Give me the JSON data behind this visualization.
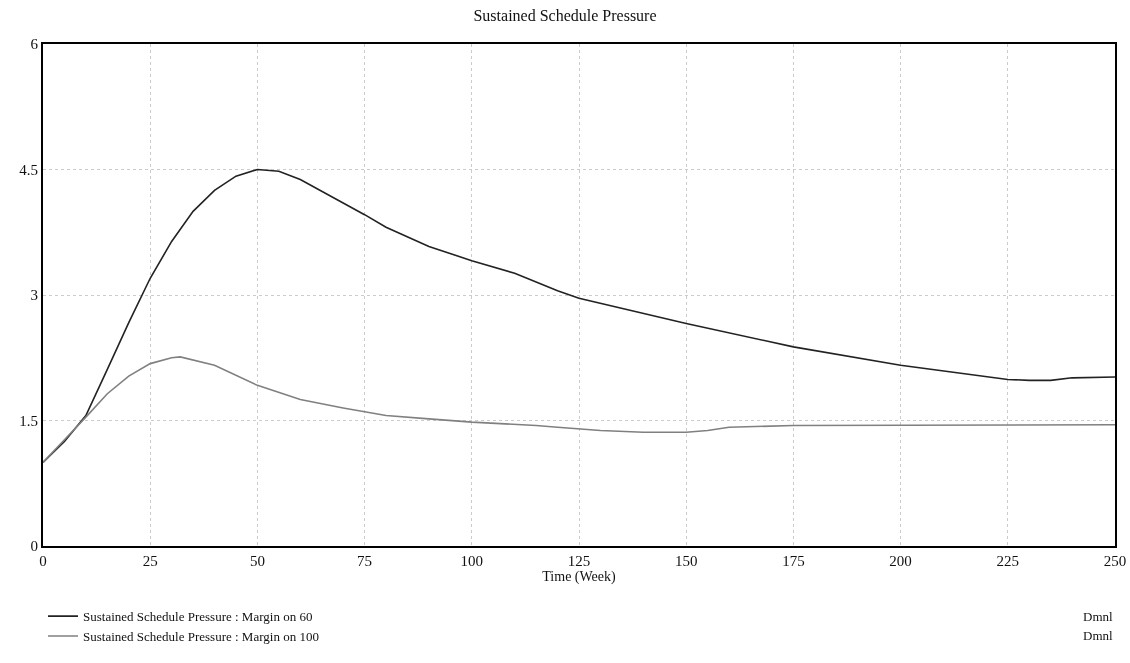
{
  "chart_data": {
    "type": "line",
    "title": "Sustained Schedule Pressure",
    "xlabel": "Time (Week)",
    "x": [
      0,
      5,
      10,
      15,
      20,
      25,
      30,
      35,
      40,
      45,
      50,
      55,
      60,
      70,
      75,
      80,
      90,
      100,
      110,
      120,
      125,
      150,
      175,
      200,
      225,
      230,
      235,
      240,
      250
    ],
    "series": [
      {
        "name": "Sustained Schedule Pressure : Margin on 60",
        "color": "#222222",
        "values": [
          1.0,
          1.25,
          1.56,
          2.11,
          2.67,
          3.2,
          3.64,
          4.0,
          4.25,
          4.42,
          4.5,
          4.48,
          4.38,
          4.1,
          3.96,
          3.81,
          3.58,
          3.41,
          3.26,
          3.05,
          2.96,
          2.66,
          2.38,
          2.16,
          1.99,
          1.98,
          1.98,
          2.01,
          2.02
        ]
      },
      {
        "name": "Sustained Schedule Pressure : Margin on 100",
        "color": "#808080",
        "x": [
          0,
          5,
          10,
          15,
          20,
          25,
          30,
          32,
          40,
          50,
          60,
          70,
          80,
          90,
          100,
          115,
          120,
          130,
          140,
          150,
          155,
          160,
          175,
          250
        ],
        "values": [
          1.0,
          1.27,
          1.54,
          1.82,
          2.03,
          2.18,
          2.25,
          2.26,
          2.16,
          1.92,
          1.75,
          1.65,
          1.56,
          1.52,
          1.48,
          1.44,
          1.42,
          1.38,
          1.36,
          1.36,
          1.38,
          1.42,
          1.44,
          1.45
        ]
      }
    ],
    "annotations": [
      "Dmnl",
      "Dmnl"
    ],
    "xlim": [
      0,
      250
    ],
    "xticks": [
      0,
      25,
      50,
      75,
      100,
      125,
      150,
      175,
      200,
      225,
      250
    ],
    "ylim": [
      0,
      6
    ],
    "yticks": [
      0,
      1.5,
      3,
      4.5,
      6
    ],
    "grid": true,
    "legend": "bottom",
    "line_style": "solid",
    "marker": "none"
  }
}
